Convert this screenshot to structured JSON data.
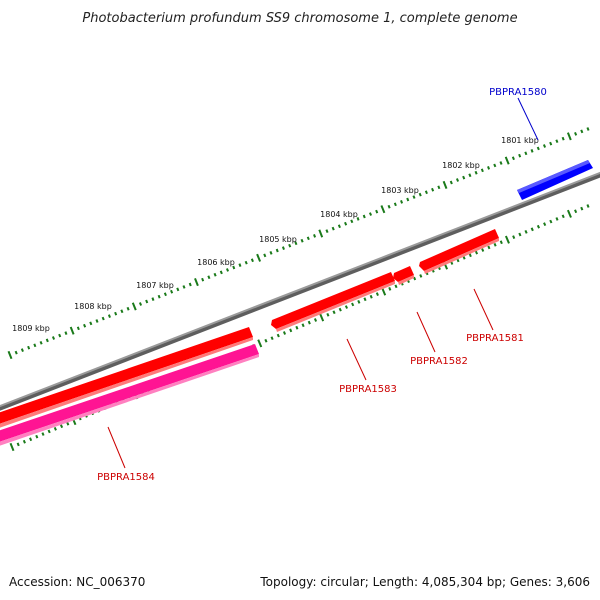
{
  "title": "Photobacterium profundum SS9 chromosome 1, complete genome",
  "footer": {
    "accession": "Accession: NC_006370",
    "topology": "Topology: circular; Length: 4,085,304 bp; Genes: 3,606"
  },
  "colors": {
    "backbone": "#808080",
    "ticks": "#1a7a1a",
    "forward_gene": "#0000ff",
    "reverse_gene": "#ff0000",
    "rna_gene": "#ff1493",
    "label_blue": "#0000cc",
    "label_red": "#cc0000"
  },
  "ruler": {
    "labels": [
      "1801 kbp",
      "1802 kbp",
      "1803 kbp",
      "1804 kbp",
      "1805 kbp",
      "1806 kbp",
      "1807 kbp",
      "1808 kbp",
      "1809 kbp"
    ]
  },
  "genes": [
    {
      "id": "g1580",
      "label": "PBPRA1580",
      "strand": "forward",
      "color": "#0000ff"
    },
    {
      "id": "g1581",
      "label": "PBPRA1581",
      "strand": "reverse",
      "color": "#ff0000"
    },
    {
      "id": "g1582",
      "label": "PBPRA1582",
      "strand": "reverse",
      "color": "#ff0000"
    },
    {
      "id": "g1583",
      "label": "PBPRA1583",
      "strand": "reverse",
      "color": "#ff0000"
    },
    {
      "id": "g1584",
      "label": "PBPRA1584",
      "strand": "reverse",
      "color": "#ff0000"
    },
    {
      "id": "g1584b",
      "label": "",
      "strand": "reverse",
      "color": "#ff1493"
    }
  ]
}
